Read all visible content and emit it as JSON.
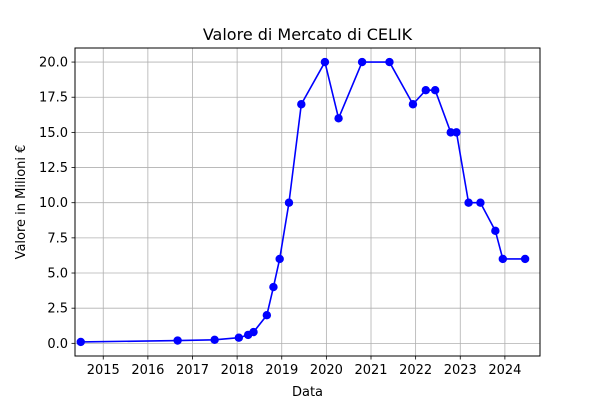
{
  "chart_data": {
    "type": "line",
    "title": "Valore di Mercato di CELIK",
    "xlabel": "Data",
    "ylabel": "Valore in Milioni €",
    "x_ticks": [
      "2015",
      "2016",
      "2017",
      "2018",
      "2019",
      "2020",
      "2021",
      "2022",
      "2023",
      "2024"
    ],
    "y_ticks": [
      "0.0",
      "2.5",
      "5.0",
      "7.5",
      "10.0",
      "12.5",
      "15.0",
      "17.5",
      "20.0"
    ],
    "xlim": [
      "2014-05-15",
      "2024-10-15"
    ],
    "ylim": [
      -0.9,
      21
    ],
    "grid": true,
    "legend": "none",
    "colors": {
      "line": "#0000ff",
      "marker": "#0000ff",
      "grid": "#b0b0b0"
    },
    "series": [
      {
        "x": [
          "2014-07-01",
          "2016-09-01",
          "2017-07-01",
          "2018-01-15",
          "2018-04-01",
          "2018-05-15",
          "2018-09-01",
          "2018-10-25",
          "2018-12-15",
          "2019-03-01",
          "2019-06-10",
          "2019-12-20",
          "2020-04-10",
          "2020-10-20",
          "2021-06-01",
          "2021-12-10",
          "2022-03-25",
          "2022-06-10",
          "2022-10-15",
          "2022-12-01",
          "2023-03-10",
          "2023-06-15",
          "2023-10-15",
          "2023-12-15",
          "2024-06-15"
        ],
        "y": [
          0.1,
          0.2,
          0.25,
          0.4,
          0.6,
          0.8,
          2,
          4,
          6,
          10,
          17,
          20,
          16,
          20,
          20,
          17,
          18,
          18,
          15,
          15,
          10,
          10,
          8,
          6,
          6
        ]
      }
    ]
  }
}
